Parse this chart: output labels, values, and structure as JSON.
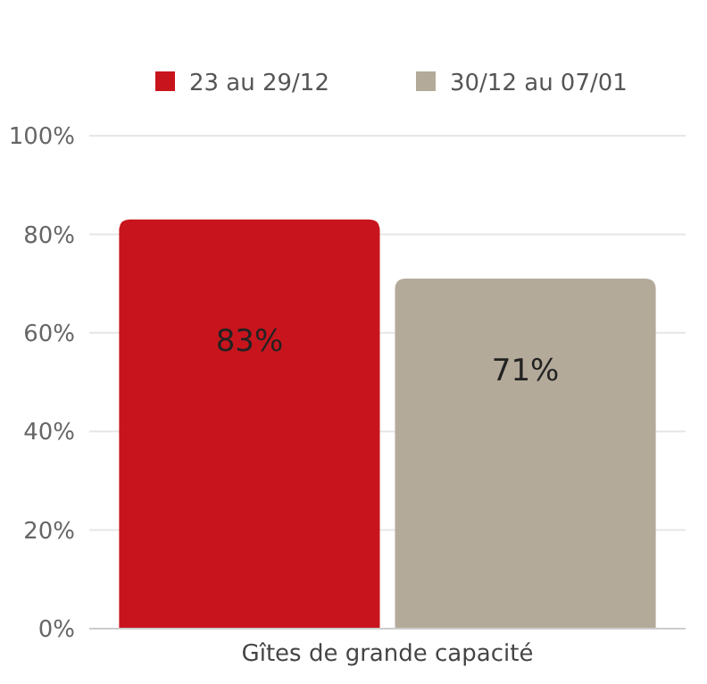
{
  "chart_data": {
    "type": "bar",
    "categories": [
      "Gîtes de grande capacité"
    ],
    "series": [
      {
        "name": "23 au 29/12",
        "color": "#c8151d",
        "values": [
          83
        ],
        "value_labels": [
          "83%"
        ]
      },
      {
        "name": "30/12 au 07/01",
        "color": "#b3aa9a",
        "values": [
          71
        ],
        "value_labels": [
          "71%"
        ]
      }
    ],
    "ylim": [
      0,
      100
    ],
    "yticks": [
      {
        "value": 0,
        "label": "0%"
      },
      {
        "value": 20,
        "label": "20%"
      },
      {
        "value": 40,
        "label": "40%"
      },
      {
        "value": 60,
        "label": "60%"
      },
      {
        "value": 80,
        "label": "80%"
      },
      {
        "value": 100,
        "label": "100%"
      }
    ],
    "grid": "y",
    "legend": "top"
  }
}
